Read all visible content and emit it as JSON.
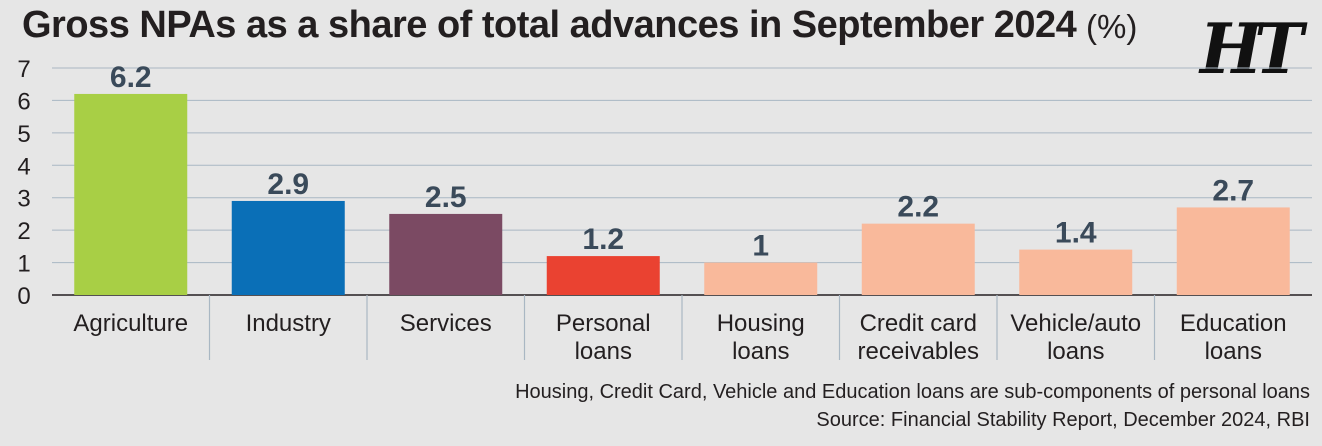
{
  "title": "Gross NPAs as a share of total advances in September 2024",
  "unit": "(%)",
  "logo": "HT",
  "note": "Housing, Credit Card, Vehicle and Education loans are sub-components of personal loans",
  "source": "Source: Financial Stability Report, December 2024, RBI",
  "chart_data": {
    "type": "bar",
    "title": "Gross NPAs as a share of total advances in September 2024",
    "ylabel": "",
    "xlabel": "",
    "ylim": [
      0,
      7
    ],
    "yticks": [
      0,
      1,
      2,
      3,
      4,
      5,
      6,
      7
    ],
    "grid": true,
    "categories": [
      [
        "Agriculture"
      ],
      [
        "Industry"
      ],
      [
        "Services"
      ],
      [
        "Personal",
        "loans"
      ],
      [
        "Housing",
        "loans"
      ],
      [
        "Credit card",
        "receivables"
      ],
      [
        "Vehicle/auto",
        "loans"
      ],
      [
        "Education",
        "loans"
      ]
    ],
    "values": [
      6.2,
      2.9,
      2.5,
      1.2,
      1,
      2.2,
      1.4,
      2.7
    ],
    "value_labels": [
      "6.2",
      "2.9",
      "2.5",
      "1.2",
      "1",
      "2.2",
      "1.4",
      "2.7"
    ],
    "colors": [
      "#a8cf45",
      "#0a6fb7",
      "#7b4a63",
      "#ea4231",
      "#f9b99b",
      "#f9b99b",
      "#f9b99b",
      "#f9b99b"
    ],
    "gridline_color": "#a9b7c3",
    "label_color": "#3a4a5a"
  }
}
